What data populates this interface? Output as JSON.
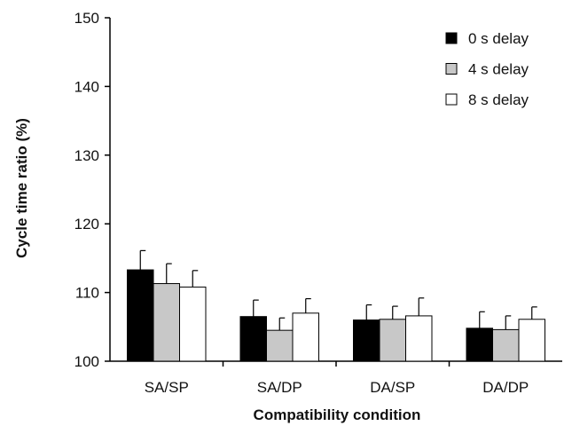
{
  "chart_data": {
    "type": "bar",
    "title": "",
    "xlabel": "Compatibility condition",
    "ylabel": "Cycle time ratio (%)",
    "ylim": [
      100,
      150
    ],
    "yticks": [
      100,
      110,
      120,
      130,
      140,
      150
    ],
    "categories": [
      "SA/SP",
      "SA/DP",
      "DA/SP",
      "DA/DP"
    ],
    "series": [
      {
        "name": "0 s delay",
        "color": "#000000",
        "values": [
          113.3,
          106.5,
          106.0,
          104.8
        ],
        "errors": [
          2.8,
          2.4,
          2.2,
          2.4
        ]
      },
      {
        "name": "4 s delay",
        "color": "#c8c8c8",
        "values": [
          111.3,
          104.5,
          106.1,
          104.6
        ],
        "errors": [
          2.9,
          1.8,
          1.9,
          2.0
        ]
      },
      {
        "name": "8 s delay",
        "color": "#ffffff",
        "values": [
          110.8,
          107.0,
          106.6,
          106.1
        ],
        "errors": [
          2.4,
          2.1,
          2.6,
          1.8
        ]
      }
    ],
    "grid": false,
    "legend_position": "top-right"
  }
}
